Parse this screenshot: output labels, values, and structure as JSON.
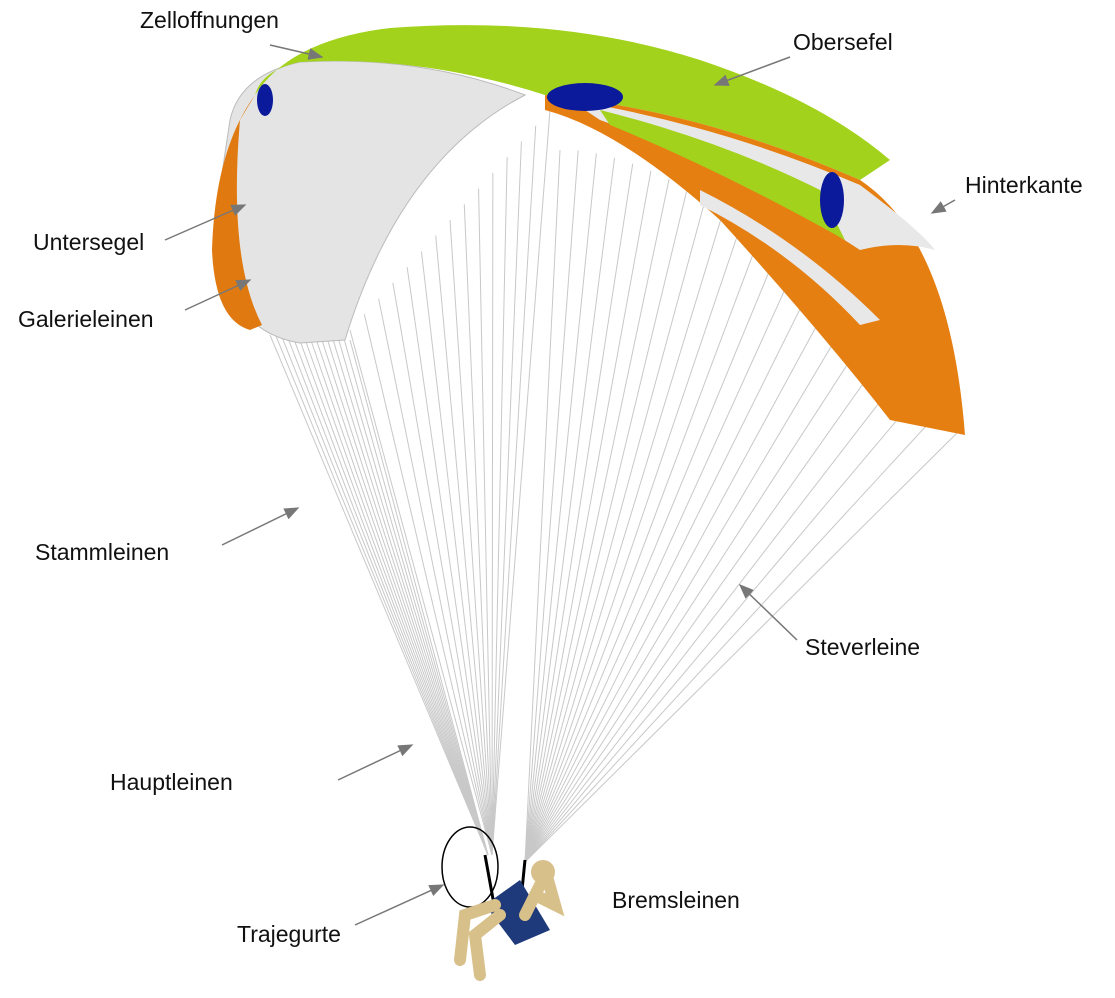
{
  "labels": [
    "Zelloffnungen",
    "Obersefel",
    "Hinterkante",
    "Untersegel",
    "Galerieleinen",
    "Stammleinen",
    "Steverleine",
    "Hauptleinen",
    "Trajegurte",
    "Bremsleinen"
  ]
}
